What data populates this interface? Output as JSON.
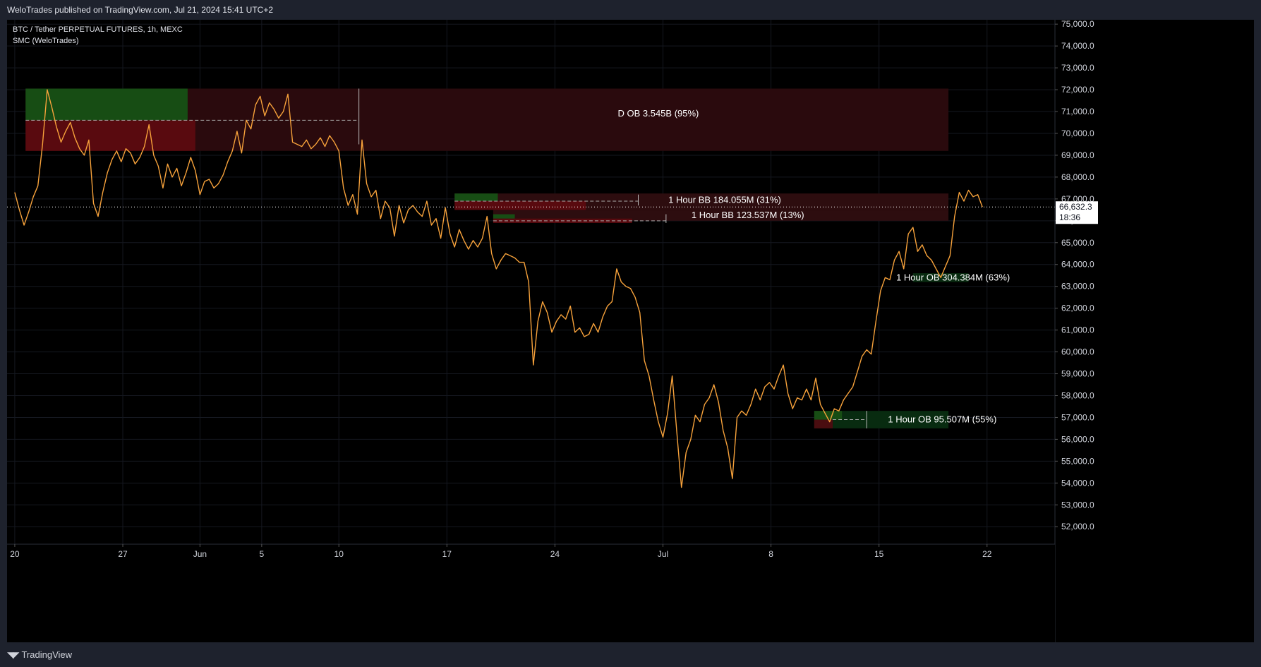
{
  "header": {
    "published_text": "WeloTrades published on TradingView.com, Jul 21, 2024 15:41 UTC+2"
  },
  "legend": {
    "symbol_line": "BTC / Tether PERPETUAL FUTURES, 1h, MEXC",
    "indicator_line": "SMC (WeloTrades)"
  },
  "footer": {
    "brand_label": "TradingView",
    "brand_icon": "tradingview-logo-icon"
  },
  "chart_data": {
    "type": "line",
    "title": "BTC / Tether PERPETUAL FUTURES, 1h, MEXC",
    "x_axis_ticks": [
      "20",
      "27",
      "Jun",
      "5",
      "10",
      "17",
      "24",
      "Jul",
      "8",
      "15",
      "22"
    ],
    "x_axis_tick_days": [
      0,
      7,
      12,
      16,
      21,
      28,
      35,
      42,
      49,
      56,
      63
    ],
    "x_range_days": [
      -0.5,
      67.4
    ],
    "y_axis_ticks": [
      "52,000.0",
      "53,000.0",
      "54,000.0",
      "55,000.0",
      "56,000.0",
      "57,000.0",
      "58,000.0",
      "59,000.0",
      "60,000.0",
      "61,000.0",
      "62,000.0",
      "63,000.0",
      "64,000.0",
      "65,000.0",
      "66,000.0",
      "67,000.0",
      "68,000.0",
      "69,000.0",
      "70,000.0",
      "71,000.0",
      "72,000.0",
      "73,000.0",
      "74,000.0",
      "75,000.0"
    ],
    "y_range": [
      51200,
      75200
    ],
    "grid": true,
    "price_color": "#f7a23b",
    "current_price": {
      "value": 66632.3,
      "label": "66,632.3",
      "countdown": "18:36"
    },
    "series": [
      {
        "x_days": [
          0,
          0.3,
          0.6,
          0.9,
          1.2,
          1.5,
          1.8,
          2.1,
          2.4,
          2.7,
          3.0,
          3.3,
          3.6,
          3.9,
          4.2,
          4.5,
          4.8,
          5.1,
          5.4,
          5.7,
          6.0,
          6.3,
          6.6,
          6.9,
          7.2,
          7.5,
          7.8,
          8.1,
          8.4,
          8.7,
          9.0,
          9.3,
          9.6,
          9.9,
          10.2,
          10.5,
          10.8,
          11.1,
          11.4,
          11.7,
          12.0,
          12.3,
          12.6,
          12.9,
          13.2,
          13.5,
          13.8,
          14.1,
          14.4,
          14.7,
          15.0,
          15.3,
          15.6,
          15.9,
          16.2,
          16.5,
          16.8,
          17.1,
          17.4,
          17.7,
          18.0,
          18.3,
          18.6,
          18.9,
          19.2,
          19.5,
          19.8,
          20.1,
          20.4,
          20.7,
          21.0,
          21.3,
          21.6,
          21.9,
          22.2,
          22.5,
          22.8,
          23.1,
          23.4,
          23.7,
          24.0,
          24.3,
          24.6,
          24.9,
          25.2,
          25.5,
          25.8,
          26.1,
          26.4,
          26.7,
          27.0,
          27.3,
          27.6,
          27.9,
          28.2,
          28.5,
          28.8,
          29.1,
          29.4,
          29.7,
          30.0,
          30.3,
          30.6,
          30.9,
          31.2,
          31.5,
          31.8,
          32.1,
          32.4,
          32.7,
          33.0,
          33.3,
          33.6,
          33.9,
          34.2,
          34.5,
          34.8,
          35.1,
          35.4,
          35.7,
          36.0,
          36.3,
          36.6,
          36.9,
          37.2,
          37.5,
          37.8,
          38.1,
          38.4,
          38.7,
          39.0,
          39.3,
          39.6,
          39.9,
          40.2,
          40.5,
          40.8,
          41.1,
          41.4,
          41.7,
          42.0,
          42.3,
          42.6,
          42.9,
          43.2,
          43.5,
          43.8,
          44.1,
          44.4,
          44.7,
          45.0,
          45.3,
          45.6,
          45.9,
          46.2,
          46.5,
          46.8,
          47.1,
          47.4,
          47.7,
          48.0,
          48.3,
          48.6,
          48.9,
          49.2,
          49.5,
          49.8,
          50.1,
          50.4,
          50.7,
          51.0,
          51.3,
          51.6,
          51.9,
          52.2,
          52.5,
          52.8,
          53.1,
          53.4,
          53.7,
          54.0,
          54.3,
          54.6,
          54.9,
          55.2,
          55.5,
          55.8,
          56.1,
          56.4,
          56.7,
          57.0,
          57.3,
          57.6,
          57.9,
          58.2,
          58.5,
          58.8,
          59.1,
          59.4,
          59.7,
          60.0,
          60.3,
          60.6,
          60.9,
          61.2,
          61.5,
          61.8,
          62.1,
          62.4,
          62.7
        ],
        "y": [
          67300,
          66500,
          65800,
          66400,
          67100,
          67600,
          69500,
          72000,
          71200,
          70300,
          69600,
          70100,
          70500,
          69800,
          69300,
          69000,
          69700,
          66800,
          66200,
          67300,
          68200,
          68800,
          69200,
          68700,
          69300,
          69100,
          68600,
          68900,
          69400,
          70400,
          69000,
          68500,
          67500,
          68600,
          68000,
          68400,
          67600,
          68200,
          68900,
          68300,
          67200,
          67800,
          67900,
          67500,
          67700,
          68100,
          68700,
          69200,
          70100,
          69100,
          70600,
          70200,
          71300,
          71700,
          70800,
          71400,
          71100,
          70700,
          71000,
          71800,
          69600,
          69500,
          69400,
          69700,
          69300,
          69500,
          69800,
          69400,
          69900,
          69600,
          69200,
          67500,
          66700,
          67200,
          66300,
          69700,
          67700,
          67100,
          67400,
          66100,
          66900,
          66600,
          65300,
          66700,
          65900,
          66500,
          66700,
          66400,
          66200,
          66900,
          65800,
          66100,
          65200,
          66600,
          65400,
          64800,
          65600,
          65100,
          64700,
          65100,
          64800,
          65200,
          66200,
          64500,
          63800,
          64200,
          64500,
          64400,
          64300,
          64100,
          64100,
          63200,
          59400,
          61400,
          62300,
          61800,
          60900,
          61400,
          61700,
          61500,
          62100,
          60900,
          61100,
          60700,
          60800,
          61300,
          60900,
          61600,
          62100,
          62300,
          63800,
          63200,
          63000,
          62900,
          62500,
          61800,
          59600,
          58900,
          57800,
          56800,
          56100,
          57200,
          58900,
          56300,
          53800,
          55400,
          56000,
          57100,
          56800,
          57600,
          57900,
          58500,
          57700,
          56400,
          55600,
          54200,
          57000,
          57300,
          57100,
          57600,
          58300,
          57800,
          58400,
          58600,
          58300,
          58900,
          59400,
          58100,
          57400,
          57900,
          57800,
          58300,
          57800,
          58800,
          57600,
          57200,
          56800,
          57400,
          57300,
          57800,
          58100,
          58400,
          59100,
          59800,
          60100,
          59900,
          61400,
          62800,
          63400,
          63300,
          64200,
          64600,
          63800,
          65400,
          65700,
          64600,
          64900,
          64400,
          64200,
          63800,
          63400,
          63900,
          64400,
          66200,
          67300,
          66900,
          67400,
          67100,
          67200,
          66632
        ]
      }
    ],
    "zones": [
      {
        "label": "D OB 3.545B (95%)",
        "top": 72050,
        "bottom": 69200,
        "color": "#2a0a0d"
      },
      {
        "label": "1 Hour BB 184.055M (31%)",
        "top": 67250,
        "bottom": 66500,
        "color": "#2d0d0f"
      },
      {
        "label": "1 Hour BB 123.537M (13%)",
        "top": 66500,
        "bottom": 66000,
        "color": "#2d0d0f"
      },
      {
        "label": "1 Hour OB 304.384M (63%)",
        "top": 63600,
        "bottom": 63200,
        "color": "#082b10"
      },
      {
        "label": "1 Hour OB 95.507M (55%)",
        "top": 57300,
        "bottom": 56500,
        "color": "#082b10"
      }
    ]
  }
}
